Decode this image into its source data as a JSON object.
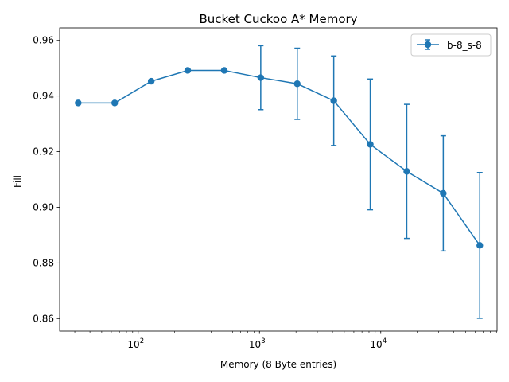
{
  "chart_data": {
    "type": "line",
    "title": "Bucket Cuckoo A* Memory",
    "xlabel": "Memory (8 Byte entries)",
    "ylabel": "Fill",
    "xscale": "log",
    "xlim": [
      22.5,
      91000
    ],
    "ylim": [
      0.8555,
      0.9645
    ],
    "x_ticks": [
      {
        "value": 100,
        "base": "10",
        "exp": "2"
      },
      {
        "value": 1000,
        "base": "10",
        "exp": "3"
      },
      {
        "value": 10000,
        "base": "10",
        "exp": "4"
      }
    ],
    "y_ticks": [
      {
        "value": 0.86,
        "label": "0.86"
      },
      {
        "value": 0.88,
        "label": "0.88"
      },
      {
        "value": 0.9,
        "label": "0.90"
      },
      {
        "value": 0.92,
        "label": "0.92"
      },
      {
        "value": 0.94,
        "label": "0.94"
      },
      {
        "value": 0.96,
        "label": "0.96"
      }
    ],
    "grid": false,
    "legend_position": "top-right",
    "series": [
      {
        "name": "b-8_s-8",
        "color": "#1f77b4",
        "x": [
          32,
          64,
          128,
          256,
          512,
          1024,
          2048,
          4096,
          8192,
          16384,
          32768,
          65536
        ],
        "y": [
          0.9375,
          0.9375,
          0.9453,
          0.9492,
          0.9492,
          0.9466,
          0.9444,
          0.9383,
          0.9226,
          0.9129,
          0.905,
          0.8863
        ],
        "yerr": [
          0,
          0,
          0,
          0,
          0,
          0.0115,
          0.0128,
          0.0161,
          0.0235,
          0.0241,
          0.0207,
          0.0262
        ]
      }
    ]
  }
}
